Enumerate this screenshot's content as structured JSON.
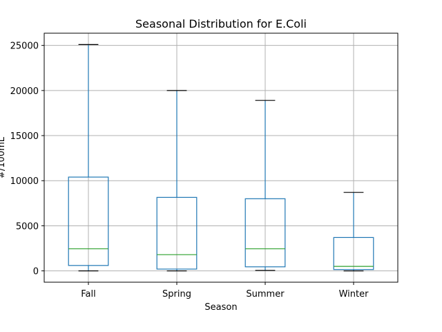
{
  "chart_data": {
    "type": "box",
    "title": "Seasonal Distribution for E.Coli",
    "xlabel": "Season",
    "ylabel": "#/100mL",
    "categories": [
      "Fall",
      "Spring",
      "Summer",
      "Winter"
    ],
    "boxes": [
      {
        "category": "Fall",
        "whisker_low": 0,
        "q1": 600,
        "median": 2450,
        "q3": 10400,
        "whisker_high": 25100
      },
      {
        "category": "Spring",
        "whisker_low": 0,
        "q1": 200,
        "median": 1800,
        "q3": 8150,
        "whisker_high": 20000
      },
      {
        "category": "Summer",
        "whisker_low": 50,
        "q1": 450,
        "median": 2450,
        "q3": 8000,
        "whisker_high": 18900
      },
      {
        "category": "Winter",
        "whisker_low": 0,
        "q1": 150,
        "median": 500,
        "q3": 3700,
        "whisker_high": 8700
      }
    ],
    "yticks": [
      0,
      5000,
      10000,
      15000,
      20000,
      25000
    ],
    "ylim": [
      -1255,
      26355
    ],
    "grid": true,
    "colors": {
      "box": "#1f77b4",
      "median": "#2ca02c",
      "cap": "#000000",
      "grid": "#b0b0b0",
      "axes": "#000000"
    }
  }
}
